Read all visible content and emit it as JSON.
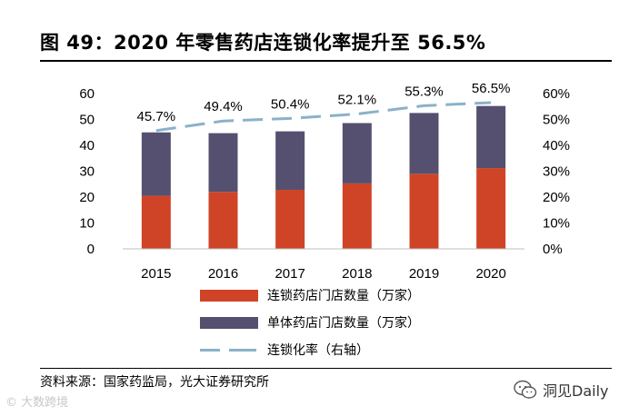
{
  "header": {
    "title": "图 49：2020 年零售药店连锁化率提升至 56.5%"
  },
  "footer": {
    "source": "资料来源：国家药监局，光大证券研究所"
  },
  "watermarks": {
    "left": "大数跨境",
    "right": "洞见Daily"
  },
  "colors": {
    "chain": "#cf4427",
    "single": "#55506f",
    "rate": "#8bb1c9"
  },
  "chart_data": {
    "type": "bar",
    "stacked": true,
    "categories": [
      "2015",
      "2016",
      "2017",
      "2018",
      "2019",
      "2020"
    ],
    "series": [
      {
        "name": "连锁药店门店数量（万家）",
        "values": [
          20.5,
          22.0,
          22.8,
          25.3,
          29.0,
          31.2
        ]
      },
      {
        "name": "单体药店门店数量（万家）",
        "values": [
          24.5,
          22.7,
          22.6,
          23.3,
          23.5,
          24.0
        ]
      }
    ],
    "line_series": {
      "name": "连锁化率（右轴）",
      "values": [
        45.7,
        49.4,
        50.4,
        52.1,
        55.3,
        56.5
      ],
      "labels": [
        "45.7%",
        "49.4%",
        "50.4%",
        "52.1%",
        "55.3%",
        "56.5%"
      ]
    },
    "y_left": {
      "range": [
        0,
        60
      ],
      "ticks": [
        "0",
        "10",
        "20",
        "30",
        "40",
        "50",
        "60"
      ]
    },
    "y_right": {
      "range": [
        0,
        60
      ],
      "ticks": [
        "0%",
        "10%",
        "20%",
        "30%",
        "40%",
        "50%",
        "60%"
      ]
    }
  }
}
